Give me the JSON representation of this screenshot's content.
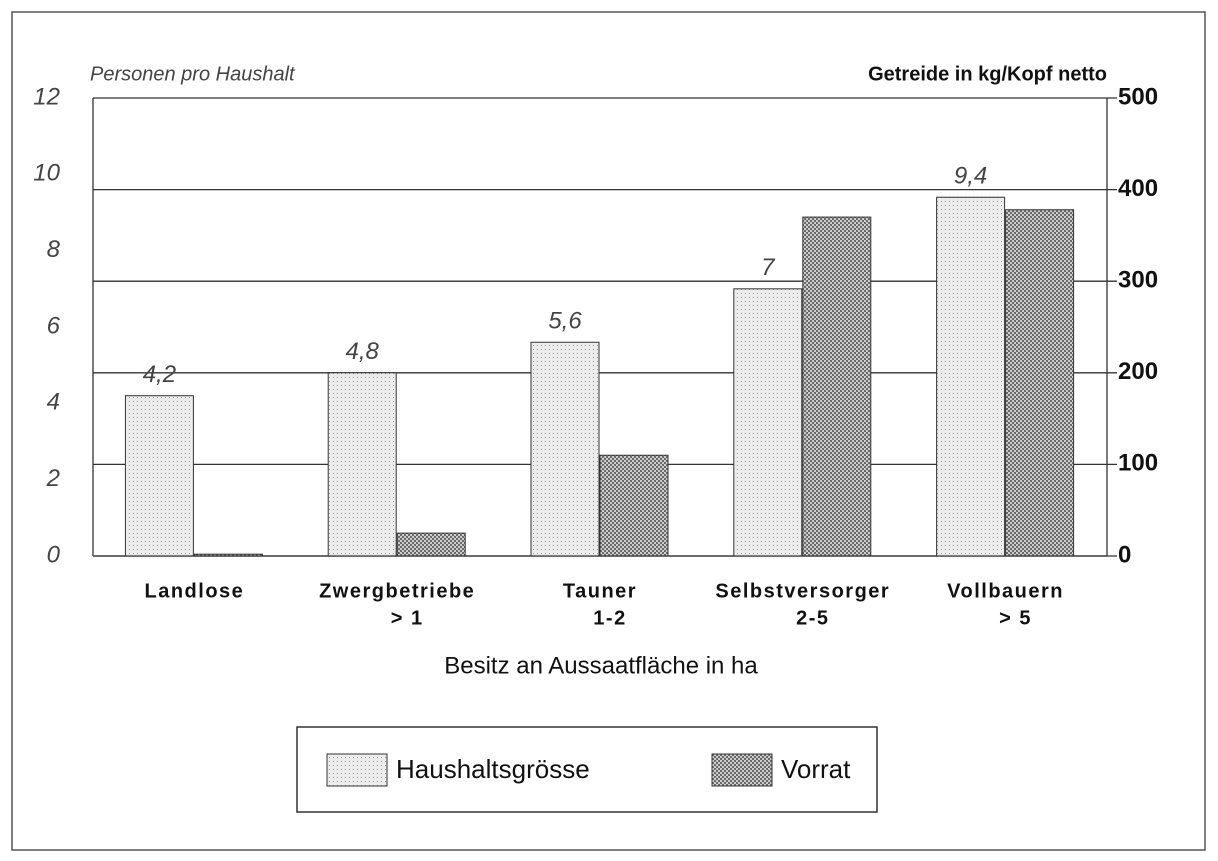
{
  "chart_data": {
    "type": "bar",
    "ylabel": "Personen pro Haushalt",
    "y2label": "Getreide in kg/Kopf netto",
    "xlabel": "Besitz an Aussaatfläche in ha",
    "categories": [
      [
        "Landlose"
      ],
      [
        "Zwergbetriebe",
        "> 1"
      ],
      [
        "Tauner",
        "1-2"
      ],
      [
        "Selbstversorger",
        "2-5"
      ],
      [
        "Vollbauern",
        "> 5"
      ]
    ],
    "series": [
      {
        "name": "Haushaltsgrösse",
        "color": "#ececec",
        "values": [
          4.2,
          4.8,
          5.6,
          7,
          9.4
        ],
        "value_labels": [
          "4,2",
          "4,8",
          "5,6",
          "7",
          "9,4"
        ]
      },
      {
        "name": "Vorrat",
        "color": "#6a6a6a",
        "axis": "y2",
        "values": [
          2,
          25,
          110,
          370,
          378
        ]
      }
    ],
    "ylim": [
      0,
      12
    ],
    "yticks": [
      0,
      2,
      4,
      6,
      8,
      10,
      12
    ],
    "y2lim": [
      0,
      500
    ],
    "y2ticks": [
      0,
      100,
      200,
      300,
      400,
      500
    ],
    "grid": true
  }
}
